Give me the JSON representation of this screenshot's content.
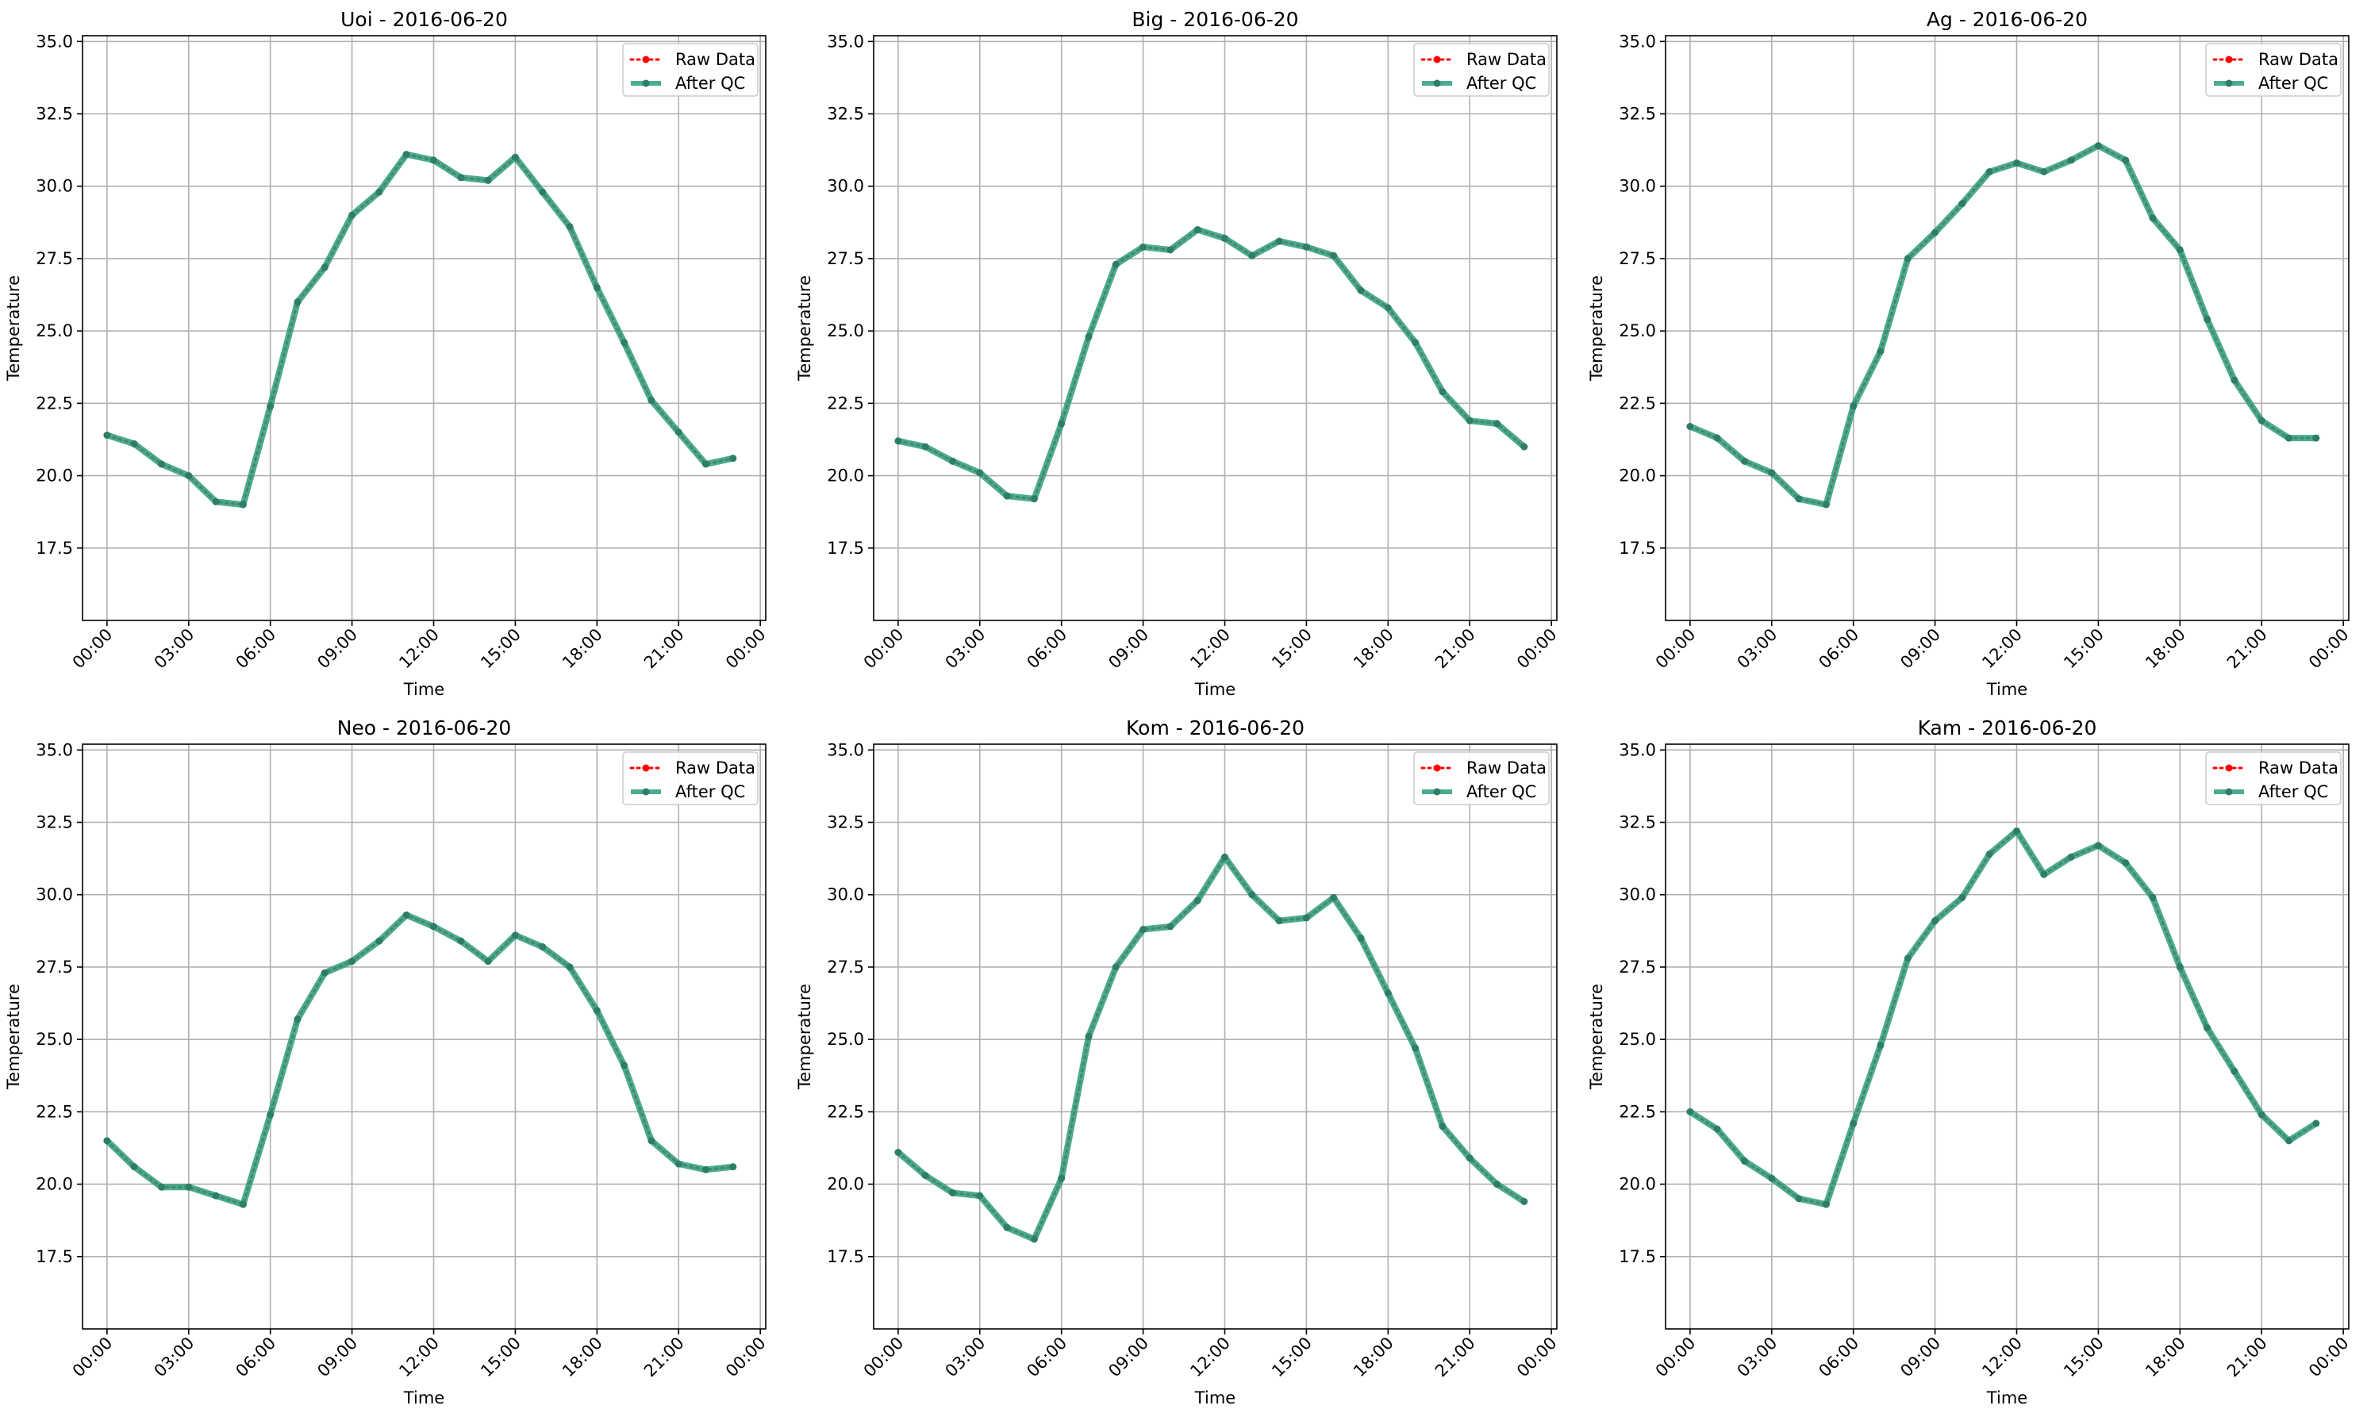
{
  "figure": {
    "legend_entries": [
      "Raw Data",
      "After QC"
    ]
  },
  "colors": {
    "raw": "#ff0000",
    "after_qc": "#2a9d7d",
    "marker": "#2e7d68",
    "grid": "#b0b0b0",
    "axes": "#000000"
  },
  "chart_data": [
    {
      "type": "line",
      "title": "Uoi - 2016-06-20",
      "xlabel": "Time",
      "ylabel": "Temperature",
      "x_ticks": [
        "00:00",
        "03:00",
        "06:00",
        "09:00",
        "12:00",
        "15:00",
        "18:00",
        "21:00",
        "00:00"
      ],
      "y_ticks": [
        "17.5",
        "20.0",
        "22.5",
        "25.0",
        "27.5",
        "30.0",
        "32.5",
        "35.0"
      ],
      "ylim": [
        15.0,
        35.2
      ],
      "xlim_hours": [
        -0.9,
        24.2
      ],
      "x_hours": [
        0,
        1,
        2,
        3,
        4,
        5,
        6,
        7,
        8,
        9,
        10,
        11,
        12,
        13,
        14,
        15,
        16,
        17,
        18,
        19,
        20,
        21,
        22,
        23
      ],
      "grid": true,
      "legend": "top-right",
      "series": [
        {
          "name": "Raw Data",
          "style": "dotted",
          "values": [
            21.4,
            21.1,
            20.4,
            20.0,
            19.1,
            19.0,
            22.4,
            26.0,
            27.2,
            29.0,
            29.8,
            31.1,
            30.9,
            30.3,
            30.2,
            31.0,
            29.8,
            28.6,
            26.5,
            24.6,
            22.6,
            21.5,
            20.4,
            20.6
          ]
        },
        {
          "name": "After QC",
          "style": "solid",
          "values": [
            21.4,
            21.1,
            20.4,
            20.0,
            19.1,
            19.0,
            22.4,
            26.0,
            27.2,
            29.0,
            29.8,
            31.1,
            30.9,
            30.3,
            30.2,
            31.0,
            29.8,
            28.6,
            26.5,
            24.6,
            22.6,
            21.5,
            20.4,
            20.6
          ]
        }
      ]
    },
    {
      "type": "line",
      "title": "Big - 2016-06-20",
      "xlabel": "Time",
      "ylabel": "Temperature",
      "x_ticks": [
        "00:00",
        "03:00",
        "06:00",
        "09:00",
        "12:00",
        "15:00",
        "18:00",
        "21:00",
        "00:00"
      ],
      "y_ticks": [
        "17.5",
        "20.0",
        "22.5",
        "25.0",
        "27.5",
        "30.0",
        "32.5",
        "35.0"
      ],
      "ylim": [
        15.0,
        35.2
      ],
      "xlim_hours": [
        -0.9,
        24.2
      ],
      "x_hours": [
        0,
        1,
        2,
        3,
        4,
        5,
        6,
        7,
        8,
        9,
        10,
        11,
        12,
        13,
        14,
        15,
        16,
        17,
        18,
        19,
        20,
        21,
        22,
        23
      ],
      "grid": true,
      "legend": "top-right",
      "series": [
        {
          "name": "Raw Data",
          "style": "dotted",
          "values": [
            21.2,
            21.0,
            20.5,
            20.1,
            19.3,
            19.2,
            21.8,
            24.8,
            27.3,
            27.9,
            27.8,
            28.5,
            28.2,
            27.6,
            28.1,
            27.9,
            27.6,
            26.4,
            25.8,
            24.6,
            22.9,
            21.9,
            21.8,
            21.0
          ]
        },
        {
          "name": "After QC",
          "style": "solid",
          "values": [
            21.2,
            21.0,
            20.5,
            20.1,
            19.3,
            19.2,
            21.8,
            24.8,
            27.3,
            27.9,
            27.8,
            28.5,
            28.2,
            27.6,
            28.1,
            27.9,
            27.6,
            26.4,
            25.8,
            24.6,
            22.9,
            21.9,
            21.8,
            21.0
          ]
        }
      ]
    },
    {
      "type": "line",
      "title": "Ag - 2016-06-20",
      "xlabel": "Time",
      "ylabel": "Temperature",
      "x_ticks": [
        "00:00",
        "03:00",
        "06:00",
        "09:00",
        "12:00",
        "15:00",
        "18:00",
        "21:00",
        "00:00"
      ],
      "y_ticks": [
        "17.5",
        "20.0",
        "22.5",
        "25.0",
        "27.5",
        "30.0",
        "32.5",
        "35.0"
      ],
      "ylim": [
        15.0,
        35.2
      ],
      "xlim_hours": [
        -0.9,
        24.2
      ],
      "x_hours": [
        0,
        1,
        2,
        3,
        4,
        5,
        6,
        7,
        8,
        9,
        10,
        11,
        12,
        13,
        14,
        15,
        16,
        17,
        18,
        19,
        20,
        21,
        22,
        23
      ],
      "grid": true,
      "legend": "top-right",
      "series": [
        {
          "name": "Raw Data",
          "style": "dotted",
          "values": [
            21.7,
            21.3,
            20.5,
            20.1,
            19.2,
            19.0,
            22.4,
            24.3,
            27.5,
            28.4,
            29.4,
            30.5,
            30.8,
            30.5,
            30.9,
            31.4,
            30.9,
            28.9,
            27.8,
            25.4,
            23.3,
            21.9,
            21.3,
            21.3
          ]
        },
        {
          "name": "After QC",
          "style": "solid",
          "values": [
            21.7,
            21.3,
            20.5,
            20.1,
            19.2,
            19.0,
            22.4,
            24.3,
            27.5,
            28.4,
            29.4,
            30.5,
            30.8,
            30.5,
            30.9,
            31.4,
            30.9,
            28.9,
            27.8,
            25.4,
            23.3,
            21.9,
            21.3,
            21.3
          ]
        }
      ]
    },
    {
      "type": "line",
      "title": "Neo - 2016-06-20",
      "xlabel": "Time",
      "ylabel": "Temperature",
      "x_ticks": [
        "00:00",
        "03:00",
        "06:00",
        "09:00",
        "12:00",
        "15:00",
        "18:00",
        "21:00",
        "00:00"
      ],
      "y_ticks": [
        "17.5",
        "20.0",
        "22.5",
        "25.0",
        "27.5",
        "30.0",
        "32.5",
        "35.0"
      ],
      "ylim": [
        15.0,
        35.2
      ],
      "xlim_hours": [
        -0.9,
        24.2
      ],
      "x_hours": [
        0,
        1,
        2,
        3,
        4,
        5,
        6,
        7,
        8,
        9,
        10,
        11,
        12,
        13,
        14,
        15,
        16,
        17,
        18,
        19,
        20,
        21,
        22,
        23
      ],
      "grid": true,
      "legend": "top-right",
      "series": [
        {
          "name": "Raw Data",
          "style": "dotted",
          "values": [
            21.5,
            20.6,
            19.9,
            19.9,
            19.6,
            19.3,
            22.4,
            25.7,
            27.3,
            27.7,
            28.4,
            29.3,
            28.9,
            28.4,
            27.7,
            28.6,
            28.2,
            27.5,
            26.0,
            24.1,
            21.5,
            20.7,
            20.5,
            20.6
          ]
        },
        {
          "name": "After QC",
          "style": "solid",
          "values": [
            21.5,
            20.6,
            19.9,
            19.9,
            19.6,
            19.3,
            22.4,
            25.7,
            27.3,
            27.7,
            28.4,
            29.3,
            28.9,
            28.4,
            27.7,
            28.6,
            28.2,
            27.5,
            26.0,
            24.1,
            21.5,
            20.7,
            20.5,
            20.6
          ]
        }
      ]
    },
    {
      "type": "line",
      "title": "Kom - 2016-06-20",
      "xlabel": "Time",
      "ylabel": "Temperature",
      "x_ticks": [
        "00:00",
        "03:00",
        "06:00",
        "09:00",
        "12:00",
        "15:00",
        "18:00",
        "21:00",
        "00:00"
      ],
      "y_ticks": [
        "17.5",
        "20.0",
        "22.5",
        "25.0",
        "27.5",
        "30.0",
        "32.5",
        "35.0"
      ],
      "ylim": [
        15.0,
        35.2
      ],
      "xlim_hours": [
        -0.9,
        24.2
      ],
      "x_hours": [
        0,
        1,
        2,
        3,
        4,
        5,
        6,
        7,
        8,
        9,
        10,
        11,
        12,
        13,
        14,
        15,
        16,
        17,
        18,
        19,
        20,
        21,
        22,
        23
      ],
      "grid": true,
      "legend": "top-right",
      "series": [
        {
          "name": "Raw Data",
          "style": "dotted",
          "values": [
            21.1,
            20.3,
            19.7,
            19.6,
            18.5,
            18.1,
            20.2,
            25.1,
            27.5,
            28.8,
            28.9,
            29.8,
            31.3,
            30.0,
            29.1,
            29.2,
            29.9,
            28.5,
            26.6,
            24.7,
            22.0,
            20.9,
            20.0,
            19.4
          ]
        },
        {
          "name": "After QC",
          "style": "solid",
          "values": [
            21.1,
            20.3,
            19.7,
            19.6,
            18.5,
            18.1,
            20.2,
            25.1,
            27.5,
            28.8,
            28.9,
            29.8,
            31.3,
            30.0,
            29.1,
            29.2,
            29.9,
            28.5,
            26.6,
            24.7,
            22.0,
            20.9,
            20.0,
            19.4
          ]
        }
      ]
    },
    {
      "type": "line",
      "title": "Kam - 2016-06-20",
      "xlabel": "Time",
      "ylabel": "Temperature",
      "x_ticks": [
        "00:00",
        "03:00",
        "06:00",
        "09:00",
        "12:00",
        "15:00",
        "18:00",
        "21:00",
        "00:00"
      ],
      "y_ticks": [
        "17.5",
        "20.0",
        "22.5",
        "25.0",
        "27.5",
        "30.0",
        "32.5",
        "35.0"
      ],
      "ylim": [
        15.0,
        35.2
      ],
      "xlim_hours": [
        -0.9,
        24.2
      ],
      "x_hours": [
        0,
        1,
        2,
        3,
        4,
        5,
        6,
        7,
        8,
        9,
        10,
        11,
        12,
        13,
        14,
        15,
        16,
        17,
        18,
        19,
        20,
        21,
        22,
        23
      ],
      "grid": true,
      "legend": "top-right",
      "series": [
        {
          "name": "Raw Data",
          "style": "dotted",
          "values": [
            22.5,
            21.9,
            20.8,
            20.2,
            19.5,
            19.3,
            22.1,
            24.8,
            27.8,
            29.1,
            29.9,
            31.4,
            32.2,
            30.7,
            31.3,
            31.7,
            31.1,
            29.9,
            27.5,
            25.4,
            23.9,
            22.4,
            21.5,
            22.1
          ]
        },
        {
          "name": "After QC",
          "style": "solid",
          "values": [
            22.5,
            21.9,
            20.8,
            20.2,
            19.5,
            19.3,
            22.1,
            24.8,
            27.8,
            29.1,
            29.9,
            31.4,
            32.2,
            30.7,
            31.3,
            31.7,
            31.1,
            29.9,
            27.5,
            25.4,
            23.9,
            22.4,
            21.5,
            22.1
          ]
        }
      ]
    }
  ]
}
